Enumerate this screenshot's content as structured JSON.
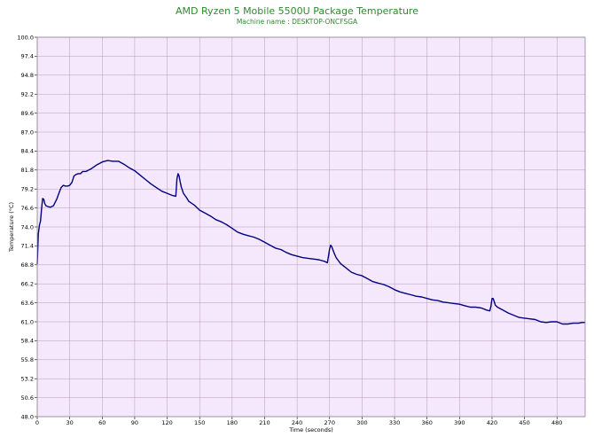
{
  "chart_data": {
    "type": "line",
    "title": "AMD Ryzen 5 Mobile 5500U Package Temperature",
    "subtitle": "Machine name : DESKTOP-ONCFSGA",
    "xlabel": "Time (seconds)",
    "ylabel": "Temperature (°C)",
    "xlim": [
      0,
      506
    ],
    "ylim": [
      48.0,
      100.0
    ],
    "grid": true,
    "xticks": [
      "0",
      "30",
      "60",
      "90",
      "120",
      "150",
      "180",
      "210",
      "240",
      "270",
      "300",
      "330",
      "360",
      "390",
      "420",
      "450",
      "480"
    ],
    "yticks": [
      "48.0",
      "50.6",
      "53.2",
      "55.8",
      "58.4",
      "61.0",
      "63.6",
      "66.2",
      "68.8",
      "71.4",
      "74.0",
      "76.6",
      "79.2",
      "81.8",
      "84.4",
      "87.0",
      "89.6",
      "92.2",
      "94.8",
      "97.4",
      "100.0"
    ],
    "colors": {
      "line": "#000080",
      "plot_bg": "#f6e8fc",
      "grid": "#b89ab8",
      "title": "#2e8b2e"
    },
    "series": [
      {
        "name": "",
        "x": [
          0,
          1,
          2,
          3,
          4,
          5,
          6,
          7,
          8,
          10,
          12,
          15,
          18,
          20,
          22,
          24,
          26,
          28,
          30,
          32,
          34,
          36,
          38,
          40,
          42,
          45,
          50,
          55,
          60,
          65,
          70,
          75,
          80,
          85,
          90,
          95,
          100,
          105,
          110,
          115,
          120,
          125,
          128,
          129,
          130,
          131,
          132,
          133,
          135,
          138,
          140,
          145,
          150,
          155,
          160,
          165,
          170,
          175,
          180,
          185,
          190,
          195,
          200,
          205,
          210,
          215,
          220,
          225,
          230,
          235,
          240,
          245,
          250,
          255,
          260,
          265,
          268,
          269,
          270,
          271,
          272,
          273,
          274,
          276,
          280,
          285,
          290,
          295,
          300,
          305,
          310,
          315,
          320,
          325,
          330,
          335,
          340,
          345,
          350,
          355,
          360,
          365,
          370,
          375,
          380,
          385,
          390,
          395,
          400,
          405,
          410,
          415,
          418,
          419,
          420,
          421,
          422,
          423,
          425,
          430,
          435,
          440,
          445,
          450,
          455,
          460,
          465,
          470,
          475,
          480,
          485,
          490,
          495,
          500,
          503,
          506
        ],
        "y": [
          68.9,
          73.0,
          74.2,
          74.8,
          76.5,
          77.9,
          77.8,
          77.2,
          76.9,
          76.8,
          76.7,
          76.9,
          77.8,
          78.6,
          79.4,
          79.7,
          79.6,
          79.6,
          79.7,
          80.1,
          81.0,
          81.2,
          81.3,
          81.3,
          81.6,
          81.6,
          82.0,
          82.5,
          82.9,
          83.1,
          83.0,
          83.0,
          82.6,
          82.1,
          81.7,
          81.1,
          80.5,
          79.9,
          79.4,
          78.9,
          78.6,
          78.3,
          78.2,
          80.6,
          81.3,
          81.0,
          80.2,
          79.5,
          78.6,
          78.0,
          77.5,
          77.0,
          76.3,
          75.9,
          75.5,
          75.0,
          74.7,
          74.3,
          73.8,
          73.3,
          73.0,
          72.8,
          72.6,
          72.3,
          71.9,
          71.5,
          71.1,
          70.9,
          70.5,
          70.2,
          70.0,
          69.8,
          69.7,
          69.6,
          69.5,
          69.3,
          69.1,
          70.0,
          71.0,
          71.5,
          71.3,
          70.9,
          70.5,
          69.8,
          69.0,
          68.4,
          67.8,
          67.5,
          67.3,
          66.9,
          66.5,
          66.3,
          66.1,
          65.8,
          65.4,
          65.1,
          64.9,
          64.7,
          64.5,
          64.4,
          64.2,
          64.0,
          63.9,
          63.7,
          63.6,
          63.5,
          63.4,
          63.2,
          63.0,
          63.0,
          62.9,
          62.6,
          62.5,
          63.1,
          64.2,
          64.2,
          63.8,
          63.3,
          63.0,
          62.6,
          62.2,
          61.9,
          61.6,
          61.5,
          61.4,
          61.3,
          61.0,
          60.9,
          61.0,
          61.0,
          60.7,
          60.7,
          60.8,
          60.8,
          60.9,
          60.9
        ]
      }
    ]
  }
}
